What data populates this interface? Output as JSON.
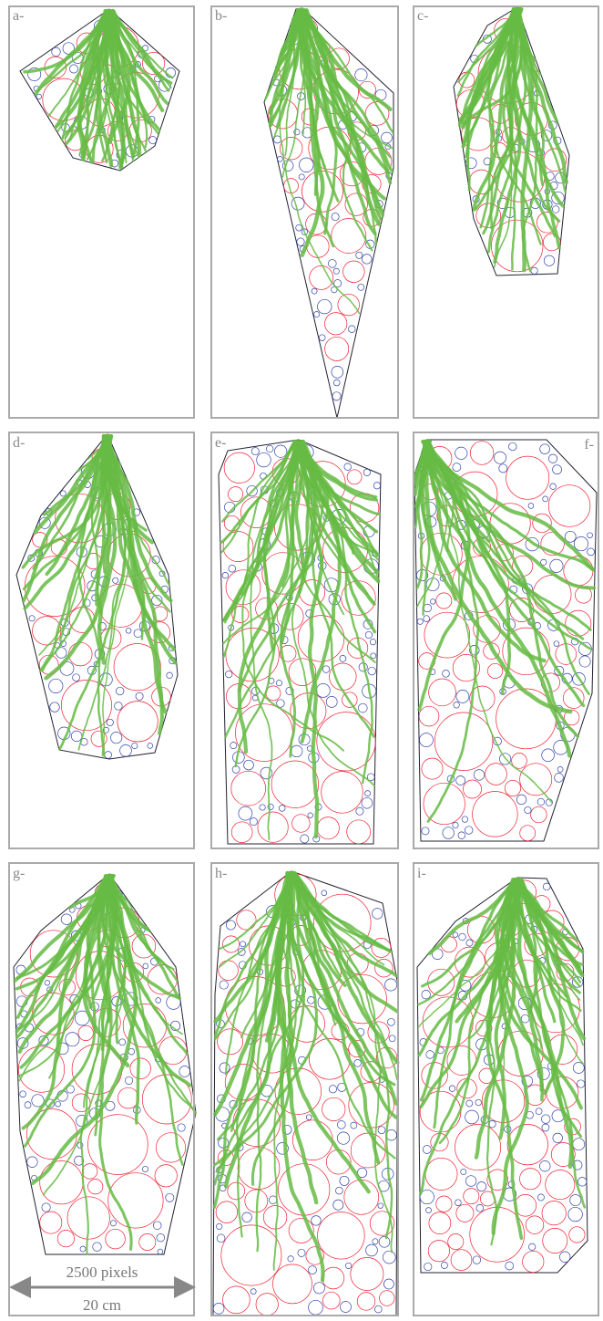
{
  "panels": [
    {
      "label": "a-"
    },
    {
      "label": "b-"
    },
    {
      "label": "c-"
    },
    {
      "label": "d-"
    },
    {
      "label": "e-"
    },
    {
      "label": "f-"
    },
    {
      "label": "g-"
    },
    {
      "label": "h-"
    },
    {
      "label": "i-"
    }
  ],
  "scale_bar": {
    "pixels": "2500 pixels",
    "length": "20 cm"
  }
}
